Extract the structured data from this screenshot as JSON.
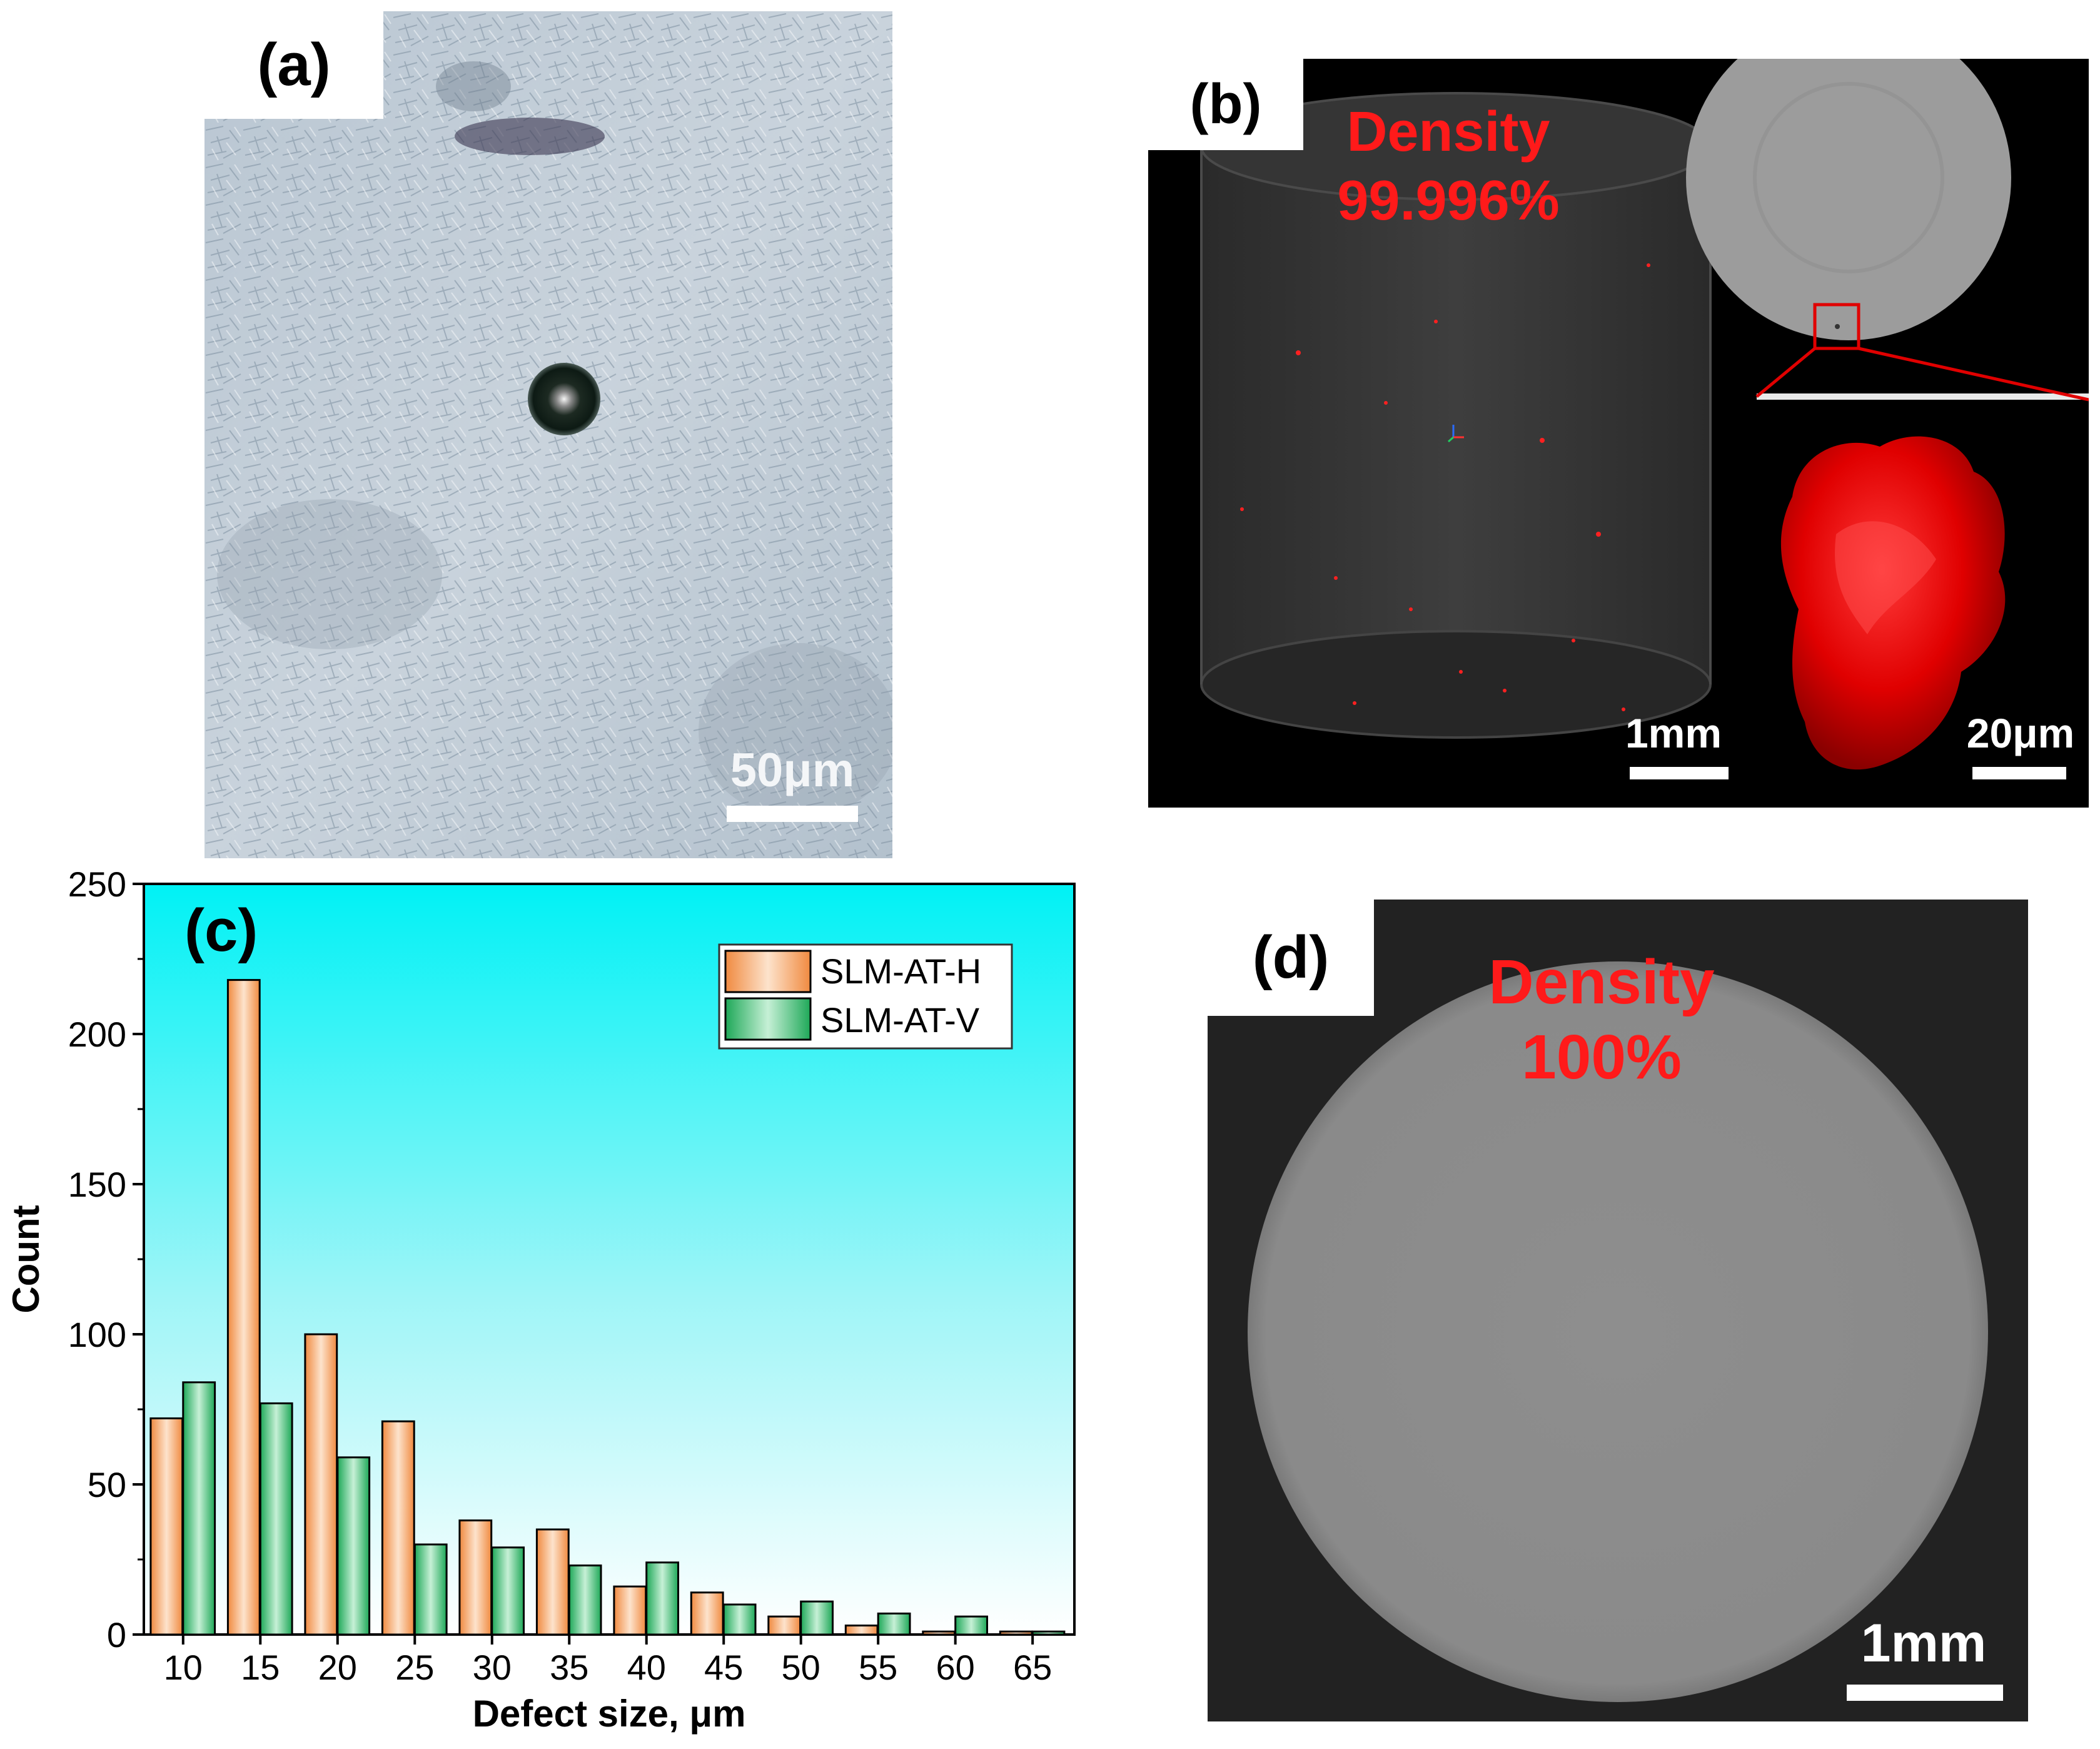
{
  "panel_a": {
    "label": "(a)",
    "scale_bar": "50μm"
  },
  "panel_b": {
    "label": "(b)",
    "density_title": "Density",
    "density_value": "99.996%",
    "scale_bar_main": "1mm",
    "scale_bar_inset": "20μm"
  },
  "panel_c": {
    "label": "(c)"
  },
  "panel_d": {
    "label": "(d)",
    "density_title": "Density",
    "density_value": "100%",
    "scale_bar": "1mm"
  },
  "chart_data": {
    "type": "bar",
    "title": "",
    "xlabel": "Defect size, μm",
    "ylabel": "Count",
    "categories": [
      "10",
      "15",
      "20",
      "25",
      "30",
      "35",
      "40",
      "45",
      "50",
      "55",
      "60",
      "65"
    ],
    "ylim": [
      0,
      250
    ],
    "yticks": [
      0,
      50,
      100,
      150,
      200,
      250
    ],
    "legend_position": "top-right",
    "background": "gradient cyan to white",
    "series": [
      {
        "name": "SLM-AT-H",
        "color": "#f4a46a",
        "values": [
          72,
          218,
          100,
          71,
          38,
          35,
          16,
          14,
          6,
          3,
          1,
          1
        ]
      },
      {
        "name": "SLM-AT-V",
        "color": "#2fb56a",
        "values": [
          84,
          77,
          59,
          30,
          29,
          23,
          24,
          10,
          11,
          7,
          6,
          1
        ]
      }
    ]
  }
}
